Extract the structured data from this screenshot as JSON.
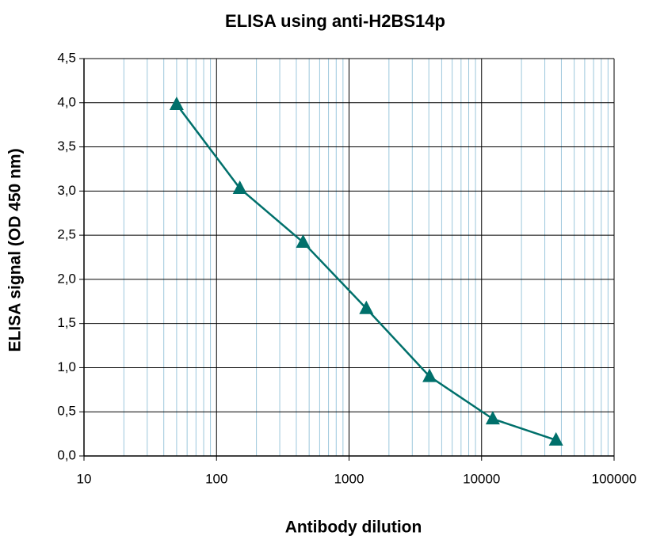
{
  "chart_data": {
    "type": "line",
    "title": "ELISA using anti-H2BS14p",
    "x_label": "Antibody dilution",
    "y_label": "ELISA signal (OD 450 nm)",
    "x_scale": "log",
    "grid": true,
    "minor_grid": true,
    "series": [
      {
        "name": "anti-H2BS14p",
        "color": "#00706b",
        "x": [
          50,
          150,
          450,
          1350,
          4050,
          12150,
          36450
        ],
        "values": [
          3.98,
          3.03,
          2.42,
          1.67,
          0.9,
          0.42,
          0.18
        ]
      }
    ],
    "xlim": [
      10,
      100000
    ],
    "xticks": [
      10,
      100,
      1000,
      10000,
      100000
    ],
    "ylim": [
      0,
      4.5
    ],
    "yticks": [
      {
        "value": 0,
        "label": "0,0"
      },
      {
        "value": 0.5,
        "label": "0,5"
      },
      {
        "value": 1,
        "label": "1,0"
      },
      {
        "value": 1.5,
        "label": "1,5"
      },
      {
        "value": 2,
        "label": "2,0"
      },
      {
        "value": 2.5,
        "label": "2,5"
      },
      {
        "value": 3,
        "label": "3,0"
      },
      {
        "value": 3.5,
        "label": "3,5"
      },
      {
        "value": 4,
        "label": "4,0"
      },
      {
        "value": 4.5,
        "label": "4,5"
      }
    ]
  }
}
